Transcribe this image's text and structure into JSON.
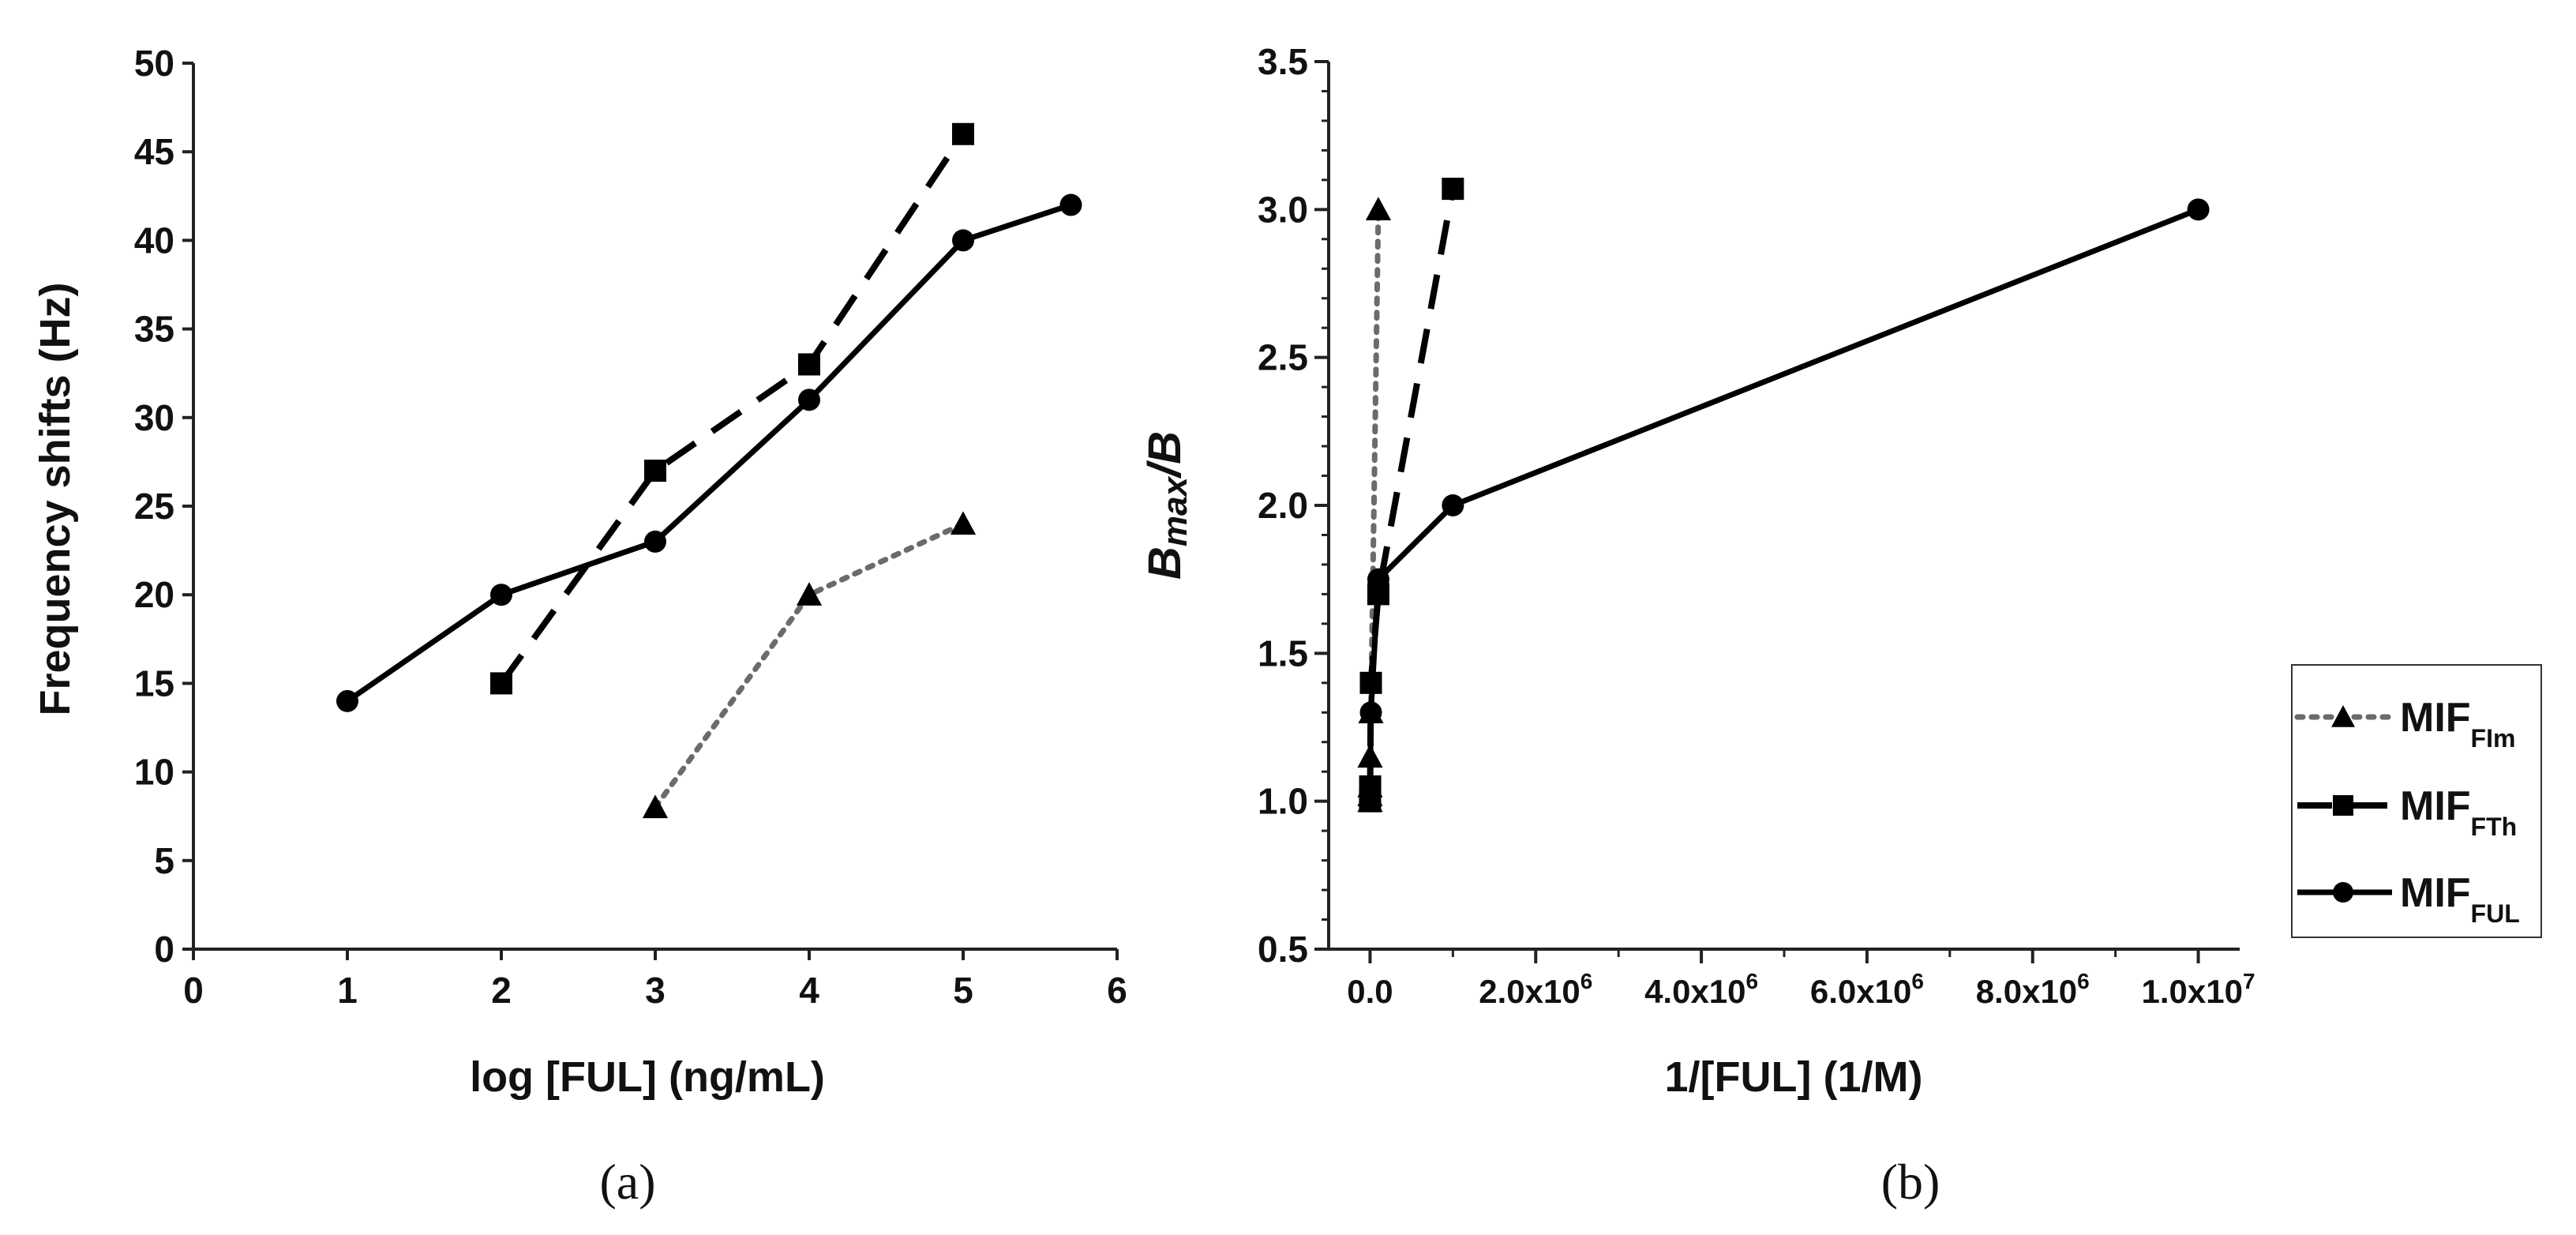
{
  "chart_data": [
    {
      "type": "line",
      "panel_label": "(a)",
      "xlabel": "log [FUL] (ng/mL)",
      "ylabel": "Frequency shifts (Hz)",
      "xlim": [
        0,
        6
      ],
      "ylim": [
        0,
        50
      ],
      "xticks": [
        "0",
        "1",
        "2",
        "3",
        "4",
        "5",
        "6"
      ],
      "yticks": [
        "0",
        "5",
        "10",
        "15",
        "20",
        "25",
        "30",
        "35",
        "40",
        "45",
        "50"
      ],
      "series": [
        {
          "name": "MIF_FIm",
          "style": "dotted",
          "marker": "triangle",
          "color": "#6b6b6b",
          "x": [
            3,
            4,
            5
          ],
          "y": [
            8,
            20,
            24
          ]
        },
        {
          "name": "MIF_FTh",
          "style": "dashed",
          "marker": "square",
          "color": "#000000",
          "x": [
            2,
            3,
            4,
            5
          ],
          "y": [
            15,
            27,
            33,
            46
          ]
        },
        {
          "name": "MIF_FUL",
          "style": "solid",
          "marker": "circle",
          "color": "#000000",
          "x": [
            1,
            2,
            3,
            4,
            5,
            5.7
          ],
          "y": [
            14,
            20,
            23,
            31,
            40,
            42
          ]
        }
      ]
    },
    {
      "type": "line",
      "panel_label": "(b)",
      "xlabel": "1/[FUL] (1/M)",
      "ylabel": "Bmax/B",
      "xlim": [
        -500000,
        10500000
      ],
      "ylim": [
        0.5,
        3.5
      ],
      "xtick_values": [
        0,
        2000000,
        4000000,
        6000000,
        8000000,
        10000000
      ],
      "xticks": [
        "0.0",
        "2.0x10",
        "4.0x10",
        "6.0x10",
        "8.0x10",
        "1.0x10"
      ],
      "xtick_exponents": [
        "",
        "6",
        "6",
        "6",
        "6",
        "7"
      ],
      "yticks": [
        "0.5",
        "1.0",
        "1.5",
        "2.0",
        "2.5",
        "3.0",
        "3.5"
      ],
      "series": [
        {
          "name": "MIF_FIm",
          "style": "dotted",
          "marker": "triangle",
          "color": "#6b6b6b",
          "x": [
            0,
            1,
            10,
            100,
            10000,
            100000
          ],
          "y": [
            1.0,
            1.02,
            1.05,
            1.15,
            1.3,
            3.0
          ]
        },
        {
          "name": "MIF_FTh",
          "style": "dashed",
          "marker": "square",
          "color": "#000000",
          "x": [
            0,
            1000,
            10000,
            100000,
            1000000
          ],
          "y": [
            1.0,
            1.05,
            1.4,
            1.7,
            3.07
          ]
        },
        {
          "name": "MIF_FUL",
          "style": "solid",
          "marker": "circle",
          "color": "#000000",
          "x": [
            0,
            1000,
            10000,
            100000,
            1000000,
            10000000
          ],
          "y": [
            1.0,
            1.02,
            1.3,
            1.75,
            2.0,
            3.0
          ]
        }
      ]
    }
  ],
  "legend": {
    "position": "right",
    "items": [
      {
        "main": "MIF",
        "sub": "FIm",
        "style": "dotted",
        "marker": "triangle",
        "color": "#6b6b6b"
      },
      {
        "main": "MIF",
        "sub": "FTh",
        "style": "dashed",
        "marker": "square",
        "color": "#000000"
      },
      {
        "main": "MIF",
        "sub": "FUL",
        "style": "solid",
        "marker": "circle",
        "color": "#000000"
      }
    ]
  }
}
